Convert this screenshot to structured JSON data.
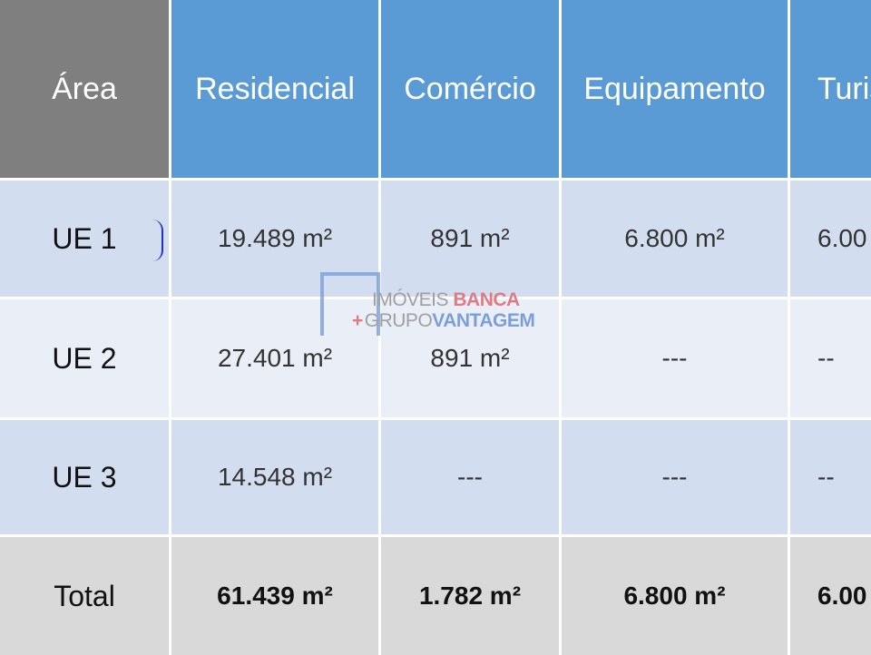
{
  "header": [
    "Área",
    "Residencial",
    "Comércio",
    "Equipamento",
    "Turis"
  ],
  "rows": [
    {
      "label": "UE 1",
      "cells": [
        "19.489 m²",
        "891 m²",
        "6.800 m²",
        "6.00"
      ]
    },
    {
      "label": "UE 2",
      "cells": [
        "27.401 m²",
        "891 m²",
        "---",
        "--"
      ]
    },
    {
      "label": "UE 3",
      "cells": [
        "14.548 m²",
        "---",
        "---",
        "--"
      ]
    }
  ],
  "total": {
    "label": "Total",
    "cells": [
      "61.439 m²",
      "1.782 m²",
      "6.800 m²",
      "6.00"
    ]
  },
  "watermark": {
    "line1a": "IMÓVEIS ",
    "line1b": "BANCA",
    "plus": "+",
    "line2a": "GRUPO",
    "line2b": "VANTAGEM"
  },
  "colors": {
    "header": "#5b9bd5",
    "area_header": "#7f7f7f",
    "row_dark": "#d2deef",
    "row_light": "#eaeff7",
    "total": "#d9d9d9"
  }
}
